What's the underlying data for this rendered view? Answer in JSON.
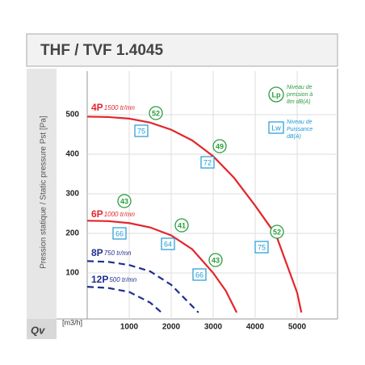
{
  "chart_data": {
    "type": "line",
    "title": "THF / TVF 1.4045",
    "y_label": "Pression statique / Static pressure Pst [Pa]",
    "x_label": "[m3/h]",
    "x_symbol": "Qv",
    "xlim": [
      0,
      6000
    ],
    "xticks": [
      1000,
      2000,
      3000,
      4000,
      5000
    ],
    "ylim": [
      0,
      600
    ],
    "yticks": [
      100,
      200,
      300,
      400,
      500
    ],
    "grid": true,
    "legend": {
      "lp_symbol": "Lp",
      "lp_text": [
        "Niveau de",
        "pression à",
        "8m dB(A)"
      ],
      "lp_color": "#2a9d3f",
      "lw_symbol": "Lw",
      "lw_text": [
        "Niveau de",
        "Puissance",
        "dB(A)"
      ],
      "lw_color": "#1e9ad6"
    },
    "series": [
      {
        "name": "4P",
        "speed": "1500 tr/mn",
        "color": "#e3262b",
        "dashed": false,
        "x": [
          0,
          500,
          1000,
          1500,
          2000,
          2500,
          3000,
          3500,
          4000,
          4500,
          5000,
          5100
        ],
        "values": [
          495,
          494,
          490,
          480,
          462,
          435,
          395,
          340,
          270,
          195,
          50,
          0
        ],
        "lp": [
          52,
          49,
          52
        ],
        "lw": [
          75,
          72,
          75
        ]
      },
      {
        "name": "6P",
        "speed": "1000 tr/mn",
        "color": "#e3262b",
        "dashed": false,
        "x": [
          0,
          500,
          1000,
          1500,
          2000,
          2500,
          3000,
          3300,
          3560
        ],
        "values": [
          232,
          231,
          226,
          215,
          195,
          160,
          100,
          55,
          0
        ],
        "lp": [
          43,
          41,
          43
        ],
        "lw": [
          66,
          64,
          66
        ]
      },
      {
        "name": "8P",
        "speed": "750 tr/mn",
        "color": "#1f2f8f",
        "dashed": true,
        "x": [
          0,
          500,
          1000,
          1500,
          2000,
          2650
        ],
        "values": [
          130,
          128,
          120,
          104,
          70,
          0
        ]
      },
      {
        "name": "12P",
        "speed": "500 tr/mn",
        "color": "#1f2f8f",
        "dashed": true,
        "x": [
          0,
          500,
          1000,
          1500,
          1770
        ],
        "values": [
          65,
          62,
          52,
          25,
          0
        ]
      }
    ]
  }
}
